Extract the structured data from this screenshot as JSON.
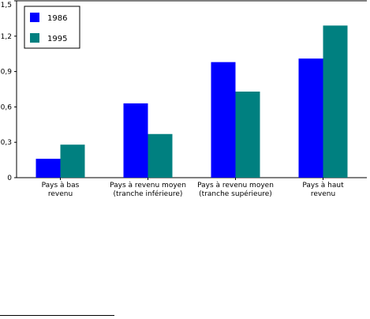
{
  "chart_data": {
    "type": "bar",
    "categories": [
      [
        "Pays à bas",
        "revenu"
      ],
      [
        "Pays à revenu moyen",
        "(tranche inférieure)"
      ],
      [
        "Pays à revenu moyen",
        "(tranche supérieure)"
      ],
      [
        "Pays à haut",
        "revenu"
      ]
    ],
    "series": [
      {
        "name": "1986",
        "color": "#0000ff",
        "values": [
          0.16,
          0.63,
          0.98,
          1.01
        ]
      },
      {
        "name": "1995",
        "color": "#008080",
        "values": [
          0.28,
          0.37,
          0.73,
          1.29
        ]
      }
    ],
    "yticks": [
      "0",
      "0,3",
      "0,6",
      "0,9",
      "1,2",
      "1,5"
    ],
    "ytick_values": [
      0,
      0.3,
      0.6,
      0.9,
      1.2,
      1.5
    ],
    "ylim": [
      0,
      1.5
    ],
    "legend": "top-left",
    "grid": false,
    "title": "",
    "xlabel": "",
    "ylabel": ""
  }
}
